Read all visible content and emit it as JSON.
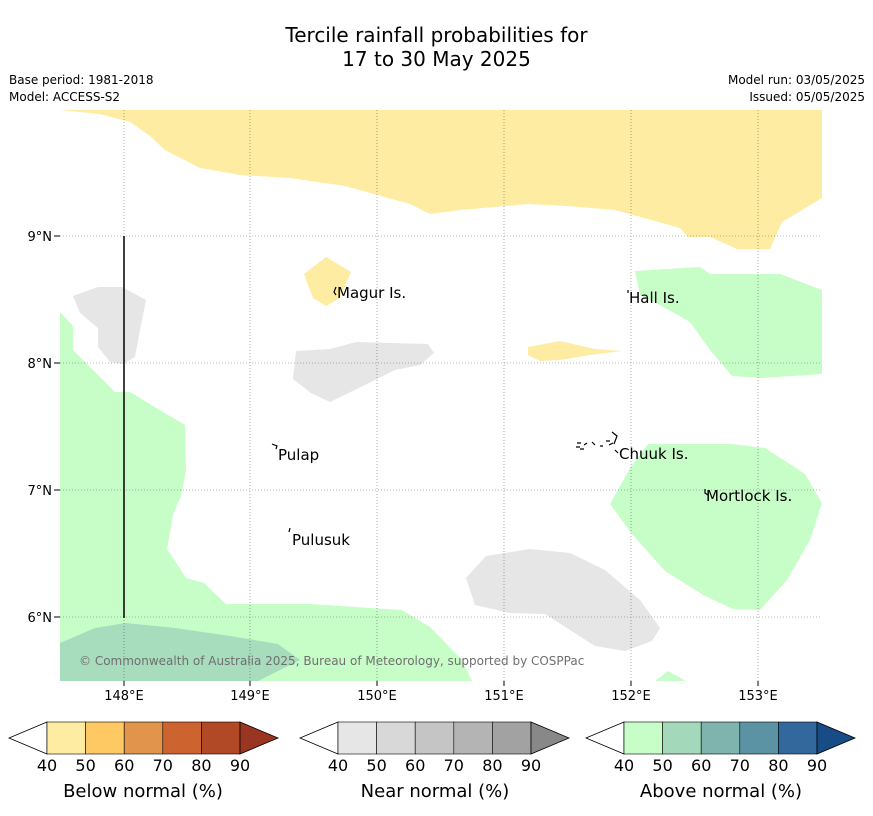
{
  "title_line1": "Tercile rainfall probabilities for",
  "title_line2": "17 to 30 May 2025",
  "base_period": "Base period: 1981-2018",
  "model": "Model: ACCESS-S2",
  "model_run": "Model run: 03/05/2025",
  "issued": "Issued: 05/05/2025",
  "copyright": "© Commonwealth of Australia 2025, Bureau of Meteorology, supported by COSPPac",
  "map": {
    "lat_labels": [
      "9°N",
      "8°N",
      "7°N",
      "6°N"
    ],
    "lon_labels": [
      "148°E",
      "149°E",
      "150°E",
      "151°E",
      "152°E",
      "153°E"
    ],
    "places": {
      "magur": "Magur Is.",
      "hall": "Hall Is.",
      "pulap": "Pulap",
      "chuuk": "Chuuk Is.",
      "mortlock": "Mortlock Is.",
      "pulusuk": "Pulusuk"
    }
  },
  "colorbars": {
    "below": {
      "label": "Below normal (%)",
      "ticks": [
        "40",
        "50",
        "60",
        "70",
        "80",
        "90"
      ],
      "colors": [
        "#ffffff",
        "#feeca2",
        "#fec863",
        "#e1944b",
        "#cd632f",
        "#b14926",
        "#9a3521"
      ]
    },
    "near": {
      "label": "Near normal (%)",
      "ticks": [
        "40",
        "50",
        "60",
        "70",
        "80",
        "90"
      ],
      "colors": [
        "#ffffff",
        "#e6e6e6",
        "#d8d8d8",
        "#c5c5c5",
        "#b4b4b4",
        "#a2a2a2",
        "#888888"
      ]
    },
    "above": {
      "label": "Above normal (%)",
      "ticks": [
        "40",
        "50",
        "60",
        "70",
        "80",
        "90"
      ],
      "colors": [
        "#ffffff",
        "#c7fdc7",
        "#a3d8bb",
        "#7fb4ae",
        "#5b92a4",
        "#33689d",
        "#184c86"
      ]
    }
  }
}
